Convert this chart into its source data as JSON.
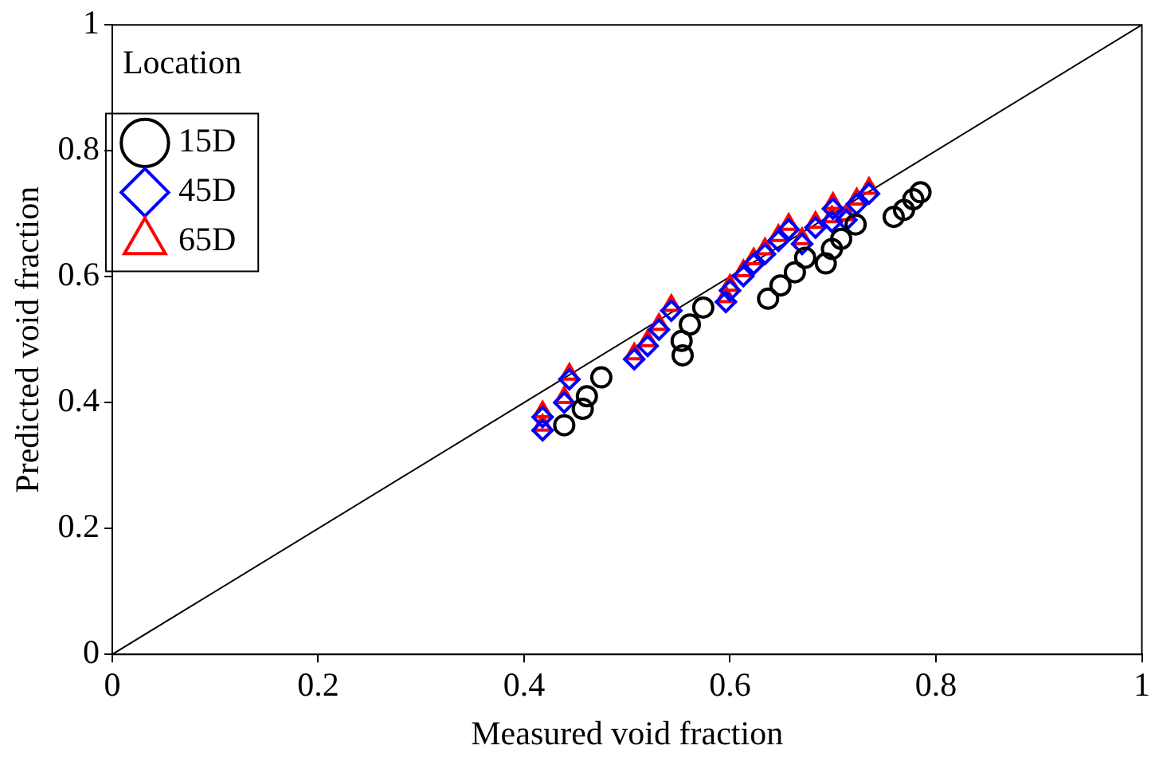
{
  "chart_data": {
    "type": "scatter",
    "xlabel": "Measured void fraction",
    "ylabel": "Predicted void fraction",
    "legend_title": "Location",
    "legend": "top left",
    "grid": false,
    "xlim": [
      0,
      1
    ],
    "ylim": [
      0,
      1
    ],
    "xticks": [
      0,
      0.2,
      0.4,
      0.6,
      0.8,
      1
    ],
    "yticks": [
      0,
      0.2,
      0.4,
      0.6,
      0.8,
      1
    ],
    "series": [
      {
        "type": "line",
        "color": "#000000",
        "marker": "none",
        "x": [
          0,
          1
        ],
        "values": [
          0,
          1
        ]
      },
      {
        "name": "15D",
        "color": "#000000",
        "marker": "circle",
        "x": [
          0.439,
          0.457,
          0.461,
          0.475,
          0.554,
          0.553,
          0.561,
          0.574,
          0.637,
          0.649,
          0.663,
          0.673,
          0.693,
          0.699,
          0.708,
          0.722,
          0.759,
          0.769,
          0.778,
          0.785
        ],
        "values": [
          0.364,
          0.39,
          0.41,
          0.44,
          0.475,
          0.498,
          0.524,
          0.551,
          0.565,
          0.586,
          0.607,
          0.63,
          0.621,
          0.644,
          0.66,
          0.683,
          0.695,
          0.706,
          0.723,
          0.734
        ]
      },
      {
        "name": "45D",
        "color": "#0000ff",
        "marker": "diamond",
        "x": [
          0.418,
          0.418,
          0.439,
          0.444,
          0.507,
          0.52,
          0.531,
          0.543,
          0.596,
          0.6,
          0.613,
          0.623,
          0.634,
          0.647,
          0.657,
          0.67,
          0.683,
          0.699,
          0.7,
          0.713,
          0.723,
          0.735
        ],
        "values": [
          0.356,
          0.377,
          0.4,
          0.437,
          0.469,
          0.49,
          0.516,
          0.546,
          0.56,
          0.578,
          0.601,
          0.62,
          0.636,
          0.657,
          0.675,
          0.652,
          0.678,
          0.687,
          0.708,
          0.69,
          0.715,
          0.732
        ]
      },
      {
        "name": "65D",
        "color": "#ff0000",
        "marker": "triangle",
        "x": [
          0.418,
          0.418,
          0.439,
          0.444,
          0.507,
          0.52,
          0.531,
          0.543,
          0.596,
          0.6,
          0.613,
          0.623,
          0.634,
          0.647,
          0.657,
          0.67,
          0.683,
          0.699,
          0.7,
          0.713,
          0.723,
          0.735
        ],
        "values": [
          0.364,
          0.385,
          0.408,
          0.445,
          0.477,
          0.498,
          0.524,
          0.554,
          0.568,
          0.586,
          0.609,
          0.628,
          0.644,
          0.665,
          0.683,
          0.66,
          0.686,
          0.695,
          0.716,
          0.698,
          0.723,
          0.74
        ]
      }
    ]
  }
}
